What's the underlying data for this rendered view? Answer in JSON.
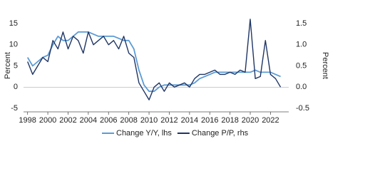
{
  "chart_data": {
    "type": "line",
    "x": [
      1998,
      1998.5,
      1999,
      1999.5,
      2000,
      2000.5,
      2001,
      2001.5,
      2002,
      2002.5,
      2003,
      2003.5,
      2004,
      2004.5,
      2005,
      2005.5,
      2006,
      2006.5,
      2007,
      2007.5,
      2008,
      2008.5,
      2009,
      2009.5,
      2010,
      2010.5,
      2011,
      2011.5,
      2012,
      2012.5,
      2013,
      2013.5,
      2014,
      2014.5,
      2015,
      2015.5,
      2016,
      2016.5,
      2017,
      2017.5,
      2018,
      2018.5,
      2019,
      2019.5,
      2020,
      2020.5,
      2021,
      2021.5,
      2022,
      2022.5,
      2023
    ],
    "series": [
      {
        "name": "Change Y/Y, lhs",
        "color": "#5b9bd5",
        "axis": "y",
        "values": [
          7,
          5,
          6,
          7,
          7.5,
          10,
          12,
          11,
          11,
          12,
          13,
          13,
          13,
          12.5,
          12,
          12,
          12,
          12,
          11.5,
          11,
          11,
          9,
          4,
          0.5,
          -1,
          -1,
          0,
          0.5,
          0.5,
          0.5,
          0.5,
          0.5,
          0.5,
          1,
          2,
          2.5,
          3,
          3.5,
          3.5,
          3.5,
          3.5,
          3.5,
          3.5,
          3.5,
          3.5,
          4,
          3.5,
          3.5,
          3.5,
          3,
          2.5
        ]
      },
      {
        "name": "Change P/P, rhs",
        "color": "#1f3564",
        "axis": "y2",
        "values": [
          0.6,
          0.3,
          0.5,
          0.7,
          0.6,
          1.1,
          0.9,
          1.3,
          0.9,
          1.2,
          1.1,
          0.8,
          1.3,
          1.0,
          1.1,
          1.2,
          1.0,
          1.1,
          0.9,
          1.2,
          0.8,
          0.7,
          0.1,
          -0.1,
          -0.3,
          0.0,
          0.1,
          -0.1,
          0.1,
          0.0,
          0.05,
          0.1,
          0.0,
          0.2,
          0.3,
          0.3,
          0.35,
          0.4,
          0.3,
          0.3,
          0.35,
          0.3,
          0.4,
          0.35,
          1.6,
          0.2,
          0.25,
          1.1,
          0.3,
          0.2,
          0.0
        ]
      }
    ],
    "ylabel": "Percent",
    "y2label": "Percent",
    "xlim": [
      1997.6,
      2023.8
    ],
    "xticks": [
      1998,
      2000,
      2002,
      2004,
      2006,
      2008,
      2010,
      2012,
      2014,
      2016,
      2018,
      2020,
      2022
    ],
    "ylim": [
      -5,
      15
    ],
    "yticks": [
      -5,
      0,
      5,
      10,
      15
    ],
    "y2lim": [
      -0.5,
      1.5
    ],
    "y2ticks": [
      -0.5,
      {
        "value": 0,
        "label": "0.0"
      },
      0.5,
      {
        "value": 1,
        "label": "1.0"
      },
      1.5
    ],
    "legend": "bottom"
  }
}
